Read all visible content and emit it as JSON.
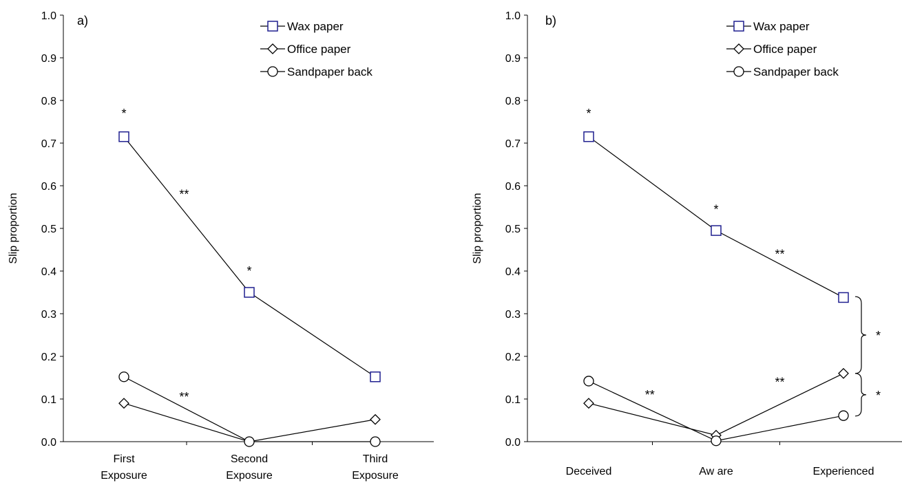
{
  "chart_data": [
    {
      "type": "line",
      "panel_label": "a)",
      "ylabel": "Slip proportion",
      "ylim": [
        0,
        1
      ],
      "yticks": [
        "0.0",
        "0.1",
        "0.2",
        "0.3",
        "0.4",
        "0.5",
        "0.6",
        "0.7",
        "0.8",
        "0.9",
        "1.0"
      ],
      "categories": [
        [
          "First",
          "Exposure"
        ],
        [
          "Second",
          "Exposure"
        ],
        [
          "Third",
          "Exposure"
        ]
      ],
      "legend_position": "top-right",
      "series": [
        {
          "name": "Wax paper",
          "marker": "square",
          "color": "#1f1f8f",
          "values": [
            0.715,
            0.35,
            0.152
          ]
        },
        {
          "name": "Office paper",
          "marker": "diamond",
          "color": "#000000",
          "values": [
            0.09,
            0.0,
            0.052
          ]
        },
        {
          "name": "Sandpaper back",
          "marker": "circle",
          "color": "#000000",
          "values": [
            0.152,
            0.0,
            0.0
          ]
        }
      ],
      "annotations": [
        {
          "text": "*",
          "cat": 0,
          "y": 0.76
        },
        {
          "text": "**",
          "cat": 0.48,
          "y": 0.57
        },
        {
          "text": "*",
          "cat": 1,
          "y": 0.39
        },
        {
          "text": "**",
          "cat": 0.48,
          "y": 0.095
        }
      ]
    },
    {
      "type": "line",
      "panel_label": "b)",
      "ylabel": "Slip proportion",
      "ylim": [
        0,
        1
      ],
      "yticks": [
        "0.0",
        "0.1",
        "0.2",
        "0.3",
        "0.4",
        "0.5",
        "0.6",
        "0.7",
        "0.8",
        "0.9",
        "1.0"
      ],
      "categories": [
        [
          "Deceived"
        ],
        [
          "Aw are"
        ],
        [
          "Experienced"
        ]
      ],
      "legend_position": "top-right",
      "series": [
        {
          "name": "Wax paper",
          "marker": "square",
          "color": "#1f1f8f",
          "values": [
            0.715,
            0.495,
            0.338
          ]
        },
        {
          "name": "Office paper",
          "marker": "diamond",
          "color": "#000000",
          "values": [
            0.09,
            0.015,
            0.16
          ]
        },
        {
          "name": "Sandpaper back",
          "marker": "circle",
          "color": "#000000",
          "values": [
            0.142,
            0.002,
            0.061
          ]
        }
      ],
      "annotations": [
        {
          "text": "*",
          "cat": 0,
          "y": 0.76
        },
        {
          "text": "*",
          "cat": 1,
          "y": 0.535
        },
        {
          "text": "**",
          "cat": 1.5,
          "y": 0.43
        },
        {
          "text": "**",
          "cat": 0.48,
          "y": 0.1
        },
        {
          "text": "**",
          "cat": 1.5,
          "y": 0.13
        }
      ],
      "brackets": [
        {
          "from": 0.16,
          "to": 0.34,
          "label": "*"
        },
        {
          "from": 0.06,
          "to": 0.16,
          "label": "*"
        }
      ]
    }
  ]
}
